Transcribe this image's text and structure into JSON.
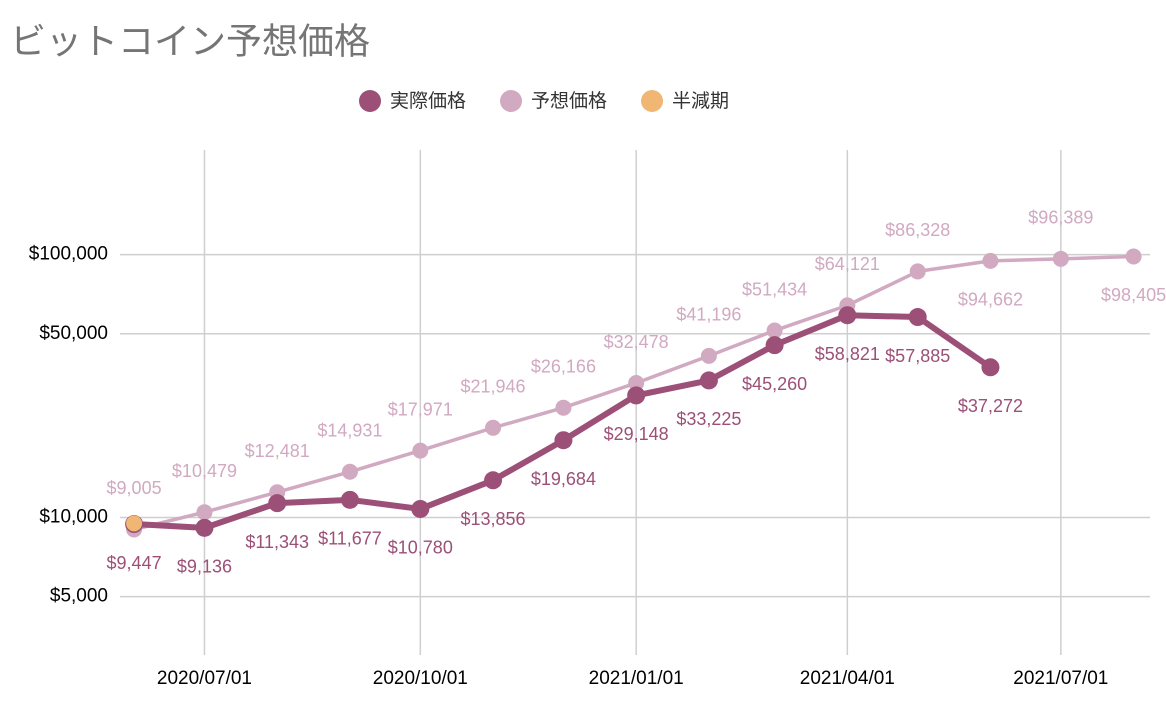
{
  "chart_data": {
    "type": "line",
    "title": "ビットコイン予想価格",
    "x": [
      "2020/06/01",
      "2020/07/01",
      "2020/08/01",
      "2020/09/01",
      "2020/10/01",
      "2020/11/01",
      "2020/12/01",
      "2021/01/01",
      "2021/02/01",
      "2021/03/01",
      "2021/04/01",
      "2021/05/01",
      "2021/06/01",
      "2021/07/01",
      "2021/08/01"
    ],
    "series": [
      {
        "name": "実際価格",
        "color": "#9c4f77",
        "values": [
          9447,
          9136,
          11343,
          11677,
          10780,
          13856,
          19684,
          29148,
          33225,
          45260,
          58821,
          57885,
          37272,
          null,
          null
        ],
        "value_labels": [
          "$9,447",
          "$9,136",
          "$11,343",
          "$11,677",
          "$10,780",
          "$13,856",
          "$19,684",
          "$29,148",
          "$33,225",
          "$45,260",
          "$58,821",
          "$57,885",
          "$37,272",
          null,
          null
        ]
      },
      {
        "name": "予想価格",
        "color": "#d1a9c1",
        "values": [
          9005,
          10479,
          12481,
          14931,
          17971,
          21946,
          26166,
          32478,
          41196,
          51434,
          64121,
          86328,
          94662,
          96389,
          98405
        ],
        "value_labels": [
          "$9,005",
          "$10,479",
          "$12,481",
          "$14,931",
          "$17,971",
          "$21,946",
          "$26,166",
          "$32,478",
          "$41,196",
          "$51,434",
          "$64,121",
          "$86,328",
          "$94,662",
          "$96,389",
          "$98,405"
        ]
      },
      {
        "name": "半減期",
        "color": "#f0b673",
        "values": [
          9500,
          null,
          null,
          null,
          null,
          null,
          null,
          null,
          null,
          null,
          null,
          null,
          null,
          null,
          null
        ]
      }
    ],
    "xlim": [
      "2020/05/26",
      "2021/08/08"
    ],
    "xticks": [
      "2020/07/01",
      "2020/10/01",
      "2021/01/01",
      "2021/04/01",
      "2021/07/01"
    ],
    "ylim": [
      3000,
      250000
    ],
    "log_y": true,
    "yticks": [
      {
        "value": 5000,
        "label": "$5,000"
      },
      {
        "value": 10000,
        "label": "$10,000"
      },
      {
        "value": 50000,
        "label": "$50,000"
      },
      {
        "value": 100000,
        "label": "$100,000"
      }
    ],
    "grid": true,
    "legend": "top"
  }
}
